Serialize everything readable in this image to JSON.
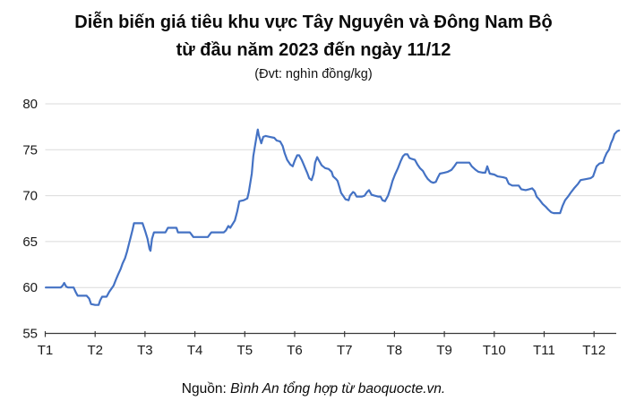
{
  "header": {
    "title_line1": "Diễn biến giá tiêu khu vực Tây Nguyên và Đông Nam Bộ",
    "title_line2": "từ đầu năm 2023 đến ngày 11/12",
    "subtitle": "(Đvt: nghìn đồng/kg)"
  },
  "footer": {
    "source_label": "Nguồn:",
    "source_text": "Bình An tổng hợp từ baoquocte.vn."
  },
  "colors": {
    "line": "#4472C4",
    "gridline": "#DBDBDB",
    "axis": "#3a3a3a",
    "tick_text": "#1a1a1a"
  },
  "chart_data": {
    "type": "line",
    "title": "Diễn biến giá tiêu khu vực Tây Nguyên và Đông Nam Bộ từ đầu năm 2023 đến ngày 11/12",
    "unit": "nghìn đồng/kg",
    "x_ticks": [
      "T1",
      "T2",
      "T3",
      "T4",
      "T5",
      "T6",
      "T7",
      "T8",
      "T9",
      "T10",
      "T11",
      "T12"
    ],
    "y_ticks": [
      55,
      60,
      65,
      70,
      75,
      80
    ],
    "ylim": [
      55,
      80
    ],
    "xlim": [
      1,
      12.55
    ],
    "grid": true,
    "legend": "none",
    "points": [
      [
        1.01,
        60
      ],
      [
        1.2,
        60
      ],
      [
        1.31,
        60
      ],
      [
        1.35,
        60.2
      ],
      [
        1.38,
        60.5
      ],
      [
        1.42,
        60.1
      ],
      [
        1.46,
        60
      ],
      [
        1.57,
        60
      ],
      [
        1.61,
        59.5
      ],
      [
        1.65,
        59.1
      ],
      [
        1.83,
        59.1
      ],
      [
        1.88,
        58.8
      ],
      [
        1.92,
        58.2
      ],
      [
        2.0,
        58.1
      ],
      [
        2.07,
        58.1
      ],
      [
        2.1,
        58.6
      ],
      [
        2.14,
        59
      ],
      [
        2.23,
        59
      ],
      [
        2.28,
        59.5
      ],
      [
        2.33,
        59.9
      ],
      [
        2.37,
        60.2
      ],
      [
        2.42,
        60.9
      ],
      [
        2.46,
        61.4
      ],
      [
        2.51,
        62
      ],
      [
        2.55,
        62.6
      ],
      [
        2.6,
        63.2
      ],
      [
        2.64,
        63.9
      ],
      [
        2.68,
        64.8
      ],
      [
        2.71,
        65.4
      ],
      [
        2.75,
        66.3
      ],
      [
        2.78,
        67
      ],
      [
        2.95,
        67
      ],
      [
        3.0,
        66.2
      ],
      [
        3.05,
        65.3
      ],
      [
        3.09,
        64.2
      ],
      [
        3.11,
        64
      ],
      [
        3.14,
        65.3
      ],
      [
        3.18,
        66
      ],
      [
        3.41,
        66
      ],
      [
        3.46,
        66.5
      ],
      [
        3.63,
        66.5
      ],
      [
        3.66,
        66
      ],
      [
        3.9,
        66
      ],
      [
        3.94,
        65.7
      ],
      [
        3.97,
        65.5
      ],
      [
        4.26,
        65.5
      ],
      [
        4.3,
        65.8
      ],
      [
        4.33,
        66
      ],
      [
        4.58,
        66
      ],
      [
        4.62,
        66.2
      ],
      [
        4.67,
        66.7
      ],
      [
        4.71,
        66.5
      ],
      [
        4.8,
        67.3
      ],
      [
        4.85,
        68.3
      ],
      [
        4.89,
        69.4
      ],
      [
        4.98,
        69.5
      ],
      [
        5.05,
        69.7
      ],
      [
        5.08,
        70.4
      ],
      [
        5.14,
        72.4
      ],
      [
        5.17,
        74.3
      ],
      [
        5.21,
        75.6
      ],
      [
        5.24,
        76.6
      ],
      [
        5.26,
        77.2
      ],
      [
        5.28,
        76.6
      ],
      [
        5.32,
        75.9
      ],
      [
        5.33,
        75.7
      ],
      [
        5.37,
        76.4
      ],
      [
        5.42,
        76.5
      ],
      [
        5.5,
        76.4
      ],
      [
        5.59,
        76.3
      ],
      [
        5.64,
        76.0
      ],
      [
        5.71,
        75.9
      ],
      [
        5.76,
        75.4
      ],
      [
        5.8,
        74.6
      ],
      [
        5.85,
        73.9
      ],
      [
        5.91,
        73.4
      ],
      [
        5.96,
        73.2
      ],
      [
        6.0,
        73.8
      ],
      [
        6.05,
        74.4
      ],
      [
        6.09,
        74.4
      ],
      [
        6.14,
        73.9
      ],
      [
        6.18,
        73.4
      ],
      [
        6.21,
        73.0
      ],
      [
        6.25,
        72.5
      ],
      [
        6.29,
        71.9
      ],
      [
        6.34,
        71.7
      ],
      [
        6.38,
        72.4
      ],
      [
        6.41,
        73.6
      ],
      [
        6.45,
        74.2
      ],
      [
        6.48,
        73.9
      ],
      [
        6.54,
        73.3
      ],
      [
        6.61,
        73.0
      ],
      [
        6.68,
        72.9
      ],
      [
        6.74,
        72.6
      ],
      [
        6.77,
        72.1
      ],
      [
        6.83,
        71.8
      ],
      [
        6.86,
        71.6
      ],
      [
        6.9,
        70.9
      ],
      [
        6.93,
        70.3
      ],
      [
        6.97,
        70.0
      ],
      [
        7.02,
        69.6
      ],
      [
        7.08,
        69.5
      ],
      [
        7.11,
        70.0
      ],
      [
        7.17,
        70.4
      ],
      [
        7.2,
        70.3
      ],
      [
        7.24,
        69.9
      ],
      [
        7.35,
        69.9
      ],
      [
        7.4,
        70.0
      ],
      [
        7.45,
        70.4
      ],
      [
        7.49,
        70.6
      ],
      [
        7.54,
        70.1
      ],
      [
        7.6,
        70.0
      ],
      [
        7.67,
        69.9
      ],
      [
        7.72,
        69.9
      ],
      [
        7.76,
        69.5
      ],
      [
        7.81,
        69.4
      ],
      [
        7.87,
        70.0
      ],
      [
        7.92,
        70.8
      ],
      [
        7.96,
        71.6
      ],
      [
        8.01,
        72.3
      ],
      [
        8.07,
        73.0
      ],
      [
        8.12,
        73.7
      ],
      [
        8.17,
        74.3
      ],
      [
        8.21,
        74.5
      ],
      [
        8.26,
        74.5
      ],
      [
        8.3,
        74.1
      ],
      [
        8.35,
        74.0
      ],
      [
        8.41,
        73.9
      ],
      [
        8.46,
        73.4
      ],
      [
        8.51,
        73.0
      ],
      [
        8.57,
        72.7
      ],
      [
        8.62,
        72.2
      ],
      [
        8.67,
        71.8
      ],
      [
        8.73,
        71.5
      ],
      [
        8.78,
        71.4
      ],
      [
        8.83,
        71.5
      ],
      [
        8.87,
        72.0
      ],
      [
        8.91,
        72.4
      ],
      [
        9.0,
        72.5
      ],
      [
        9.07,
        72.6
      ],
      [
        9.14,
        72.8
      ],
      [
        9.2,
        73.2
      ],
      [
        9.25,
        73.6
      ],
      [
        9.5,
        73.6
      ],
      [
        9.55,
        73.2
      ],
      [
        9.63,
        72.8
      ],
      [
        9.68,
        72.6
      ],
      [
        9.77,
        72.5
      ],
      [
        9.82,
        72.5
      ],
      [
        9.86,
        73.2
      ],
      [
        9.91,
        72.4
      ],
      [
        10.0,
        72.3
      ],
      [
        10.07,
        72.1
      ],
      [
        10.18,
        72.0
      ],
      [
        10.24,
        71.9
      ],
      [
        10.29,
        71.3
      ],
      [
        10.36,
        71.1
      ],
      [
        10.49,
        71.1
      ],
      [
        10.54,
        70.7
      ],
      [
        10.63,
        70.6
      ],
      [
        10.7,
        70.7
      ],
      [
        10.76,
        70.8
      ],
      [
        10.81,
        70.5
      ],
      [
        10.85,
        69.9
      ],
      [
        10.9,
        69.6
      ],
      [
        10.97,
        69.1
      ],
      [
        11.03,
        68.8
      ],
      [
        11.08,
        68.5
      ],
      [
        11.14,
        68.2
      ],
      [
        11.19,
        68.1
      ],
      [
        11.32,
        68.1
      ],
      [
        11.37,
        68.9
      ],
      [
        11.42,
        69.5
      ],
      [
        11.48,
        69.9
      ],
      [
        11.53,
        70.3
      ],
      [
        11.6,
        70.8
      ],
      [
        11.68,
        71.3
      ],
      [
        11.73,
        71.7
      ],
      [
        11.84,
        71.8
      ],
      [
        11.93,
        71.9
      ],
      [
        11.98,
        72.1
      ],
      [
        12.02,
        72.7
      ],
      [
        12.05,
        73.2
      ],
      [
        12.11,
        73.5
      ],
      [
        12.18,
        73.6
      ],
      [
        12.21,
        74.1
      ],
      [
        12.25,
        74.6
      ],
      [
        12.3,
        75.0
      ],
      [
        12.34,
        75.7
      ],
      [
        12.38,
        76.2
      ],
      [
        12.41,
        76.7
      ],
      [
        12.46,
        77.0
      ],
      [
        12.5,
        77.1
      ]
    ]
  }
}
